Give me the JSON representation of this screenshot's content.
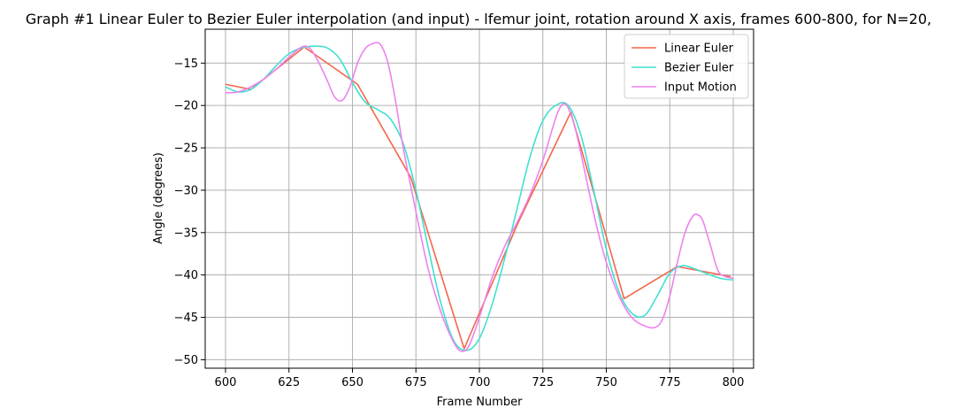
{
  "chart_data": {
    "type": "line",
    "title": "Graph #1 Linear Euler to Bezier Euler interpolation (and input) - lfemur joint, rotation around X axis, frames 600-800, for N=20,",
    "xlabel": "Frame Number",
    "ylabel": "Angle (degrees)",
    "xlim": [
      592,
      808
    ],
    "ylim": [
      -51,
      -11
    ],
    "x_ticks": [
      600,
      625,
      650,
      675,
      700,
      725,
      750,
      775,
      800
    ],
    "y_ticks": [
      -15,
      -20,
      -25,
      -30,
      -35,
      -40,
      -45,
      -50
    ],
    "grid": true,
    "legend_position": "top-right",
    "series": [
      {
        "name": "Linear Euler",
        "color": "#f4664a",
        "points": [
          [
            600,
            -17.5
          ],
          [
            610,
            -18.1
          ],
          [
            631,
            -13.1
          ],
          [
            652,
            -17.5
          ],
          [
            673,
            -28.5
          ],
          [
            694,
            -48.7
          ],
          [
            715,
            -34.0
          ],
          [
            736,
            -20.8
          ],
          [
            757,
            -42.8
          ],
          [
            778,
            -39.0
          ],
          [
            799,
            -40.2
          ]
        ]
      },
      {
        "name": "Bezier Euler",
        "color": "#40e0d0",
        "points": [
          [
            600,
            -17.8
          ],
          [
            605,
            -18.4
          ],
          [
            610,
            -18.1
          ],
          [
            615,
            -16.9
          ],
          [
            620,
            -15.3
          ],
          [
            625,
            -13.9
          ],
          [
            630,
            -13.2
          ],
          [
            635,
            -13.0
          ],
          [
            640,
            -13.2
          ],
          [
            645,
            -14.5
          ],
          [
            650,
            -17.3
          ],
          [
            655,
            -19.6
          ],
          [
            660,
            -20.5
          ],
          [
            665,
            -21.6
          ],
          [
            670,
            -24.5
          ],
          [
            675,
            -30.0
          ],
          [
            680,
            -37.0
          ],
          [
            685,
            -43.5
          ],
          [
            690,
            -47.8
          ],
          [
            695,
            -48.9
          ],
          [
            700,
            -47.5
          ],
          [
            705,
            -43.5
          ],
          [
            710,
            -38.0
          ],
          [
            715,
            -32.0
          ],
          [
            720,
            -26.0
          ],
          [
            725,
            -21.8
          ],
          [
            730,
            -20.0
          ],
          [
            735,
            -20.0
          ],
          [
            740,
            -23.5
          ],
          [
            745,
            -30.0
          ],
          [
            750,
            -37.0
          ],
          [
            755,
            -42.0
          ],
          [
            760,
            -44.5
          ],
          [
            765,
            -44.8
          ],
          [
            770,
            -42.5
          ],
          [
            775,
            -39.8
          ],
          [
            780,
            -38.9
          ],
          [
            785,
            -39.3
          ],
          [
            790,
            -39.9
          ],
          [
            795,
            -40.4
          ],
          [
            800,
            -40.6
          ]
        ]
      },
      {
        "name": "Input Motion",
        "color": "#ee82ee",
        "points": [
          [
            600,
            -18.5
          ],
          [
            605,
            -18.4
          ],
          [
            610,
            -17.8
          ],
          [
            615,
            -16.9
          ],
          [
            620,
            -15.7
          ],
          [
            625,
            -14.3
          ],
          [
            630,
            -13.1
          ],
          [
            633,
            -13.2
          ],
          [
            636,
            -14.5
          ],
          [
            640,
            -17.0
          ],
          [
            643,
            -19.0
          ],
          [
            646,
            -19.4
          ],
          [
            649,
            -17.8
          ],
          [
            652,
            -15.0
          ],
          [
            655,
            -13.3
          ],
          [
            658,
            -12.7
          ],
          [
            661,
            -12.8
          ],
          [
            664,
            -15.0
          ],
          [
            667,
            -19.5
          ],
          [
            670,
            -25.0
          ],
          [
            675,
            -32.5
          ],
          [
            680,
            -39.5
          ],
          [
            685,
            -44.5
          ],
          [
            690,
            -48.0
          ],
          [
            693,
            -49.0
          ],
          [
            696,
            -48.3
          ],
          [
            700,
            -45.0
          ],
          [
            705,
            -40.3
          ],
          [
            710,
            -36.6
          ],
          [
            715,
            -33.7
          ],
          [
            720,
            -30.5
          ],
          [
            725,
            -26.5
          ],
          [
            729,
            -22.5
          ],
          [
            731,
            -20.7
          ],
          [
            733,
            -19.8
          ],
          [
            735,
            -20.3
          ],
          [
            738,
            -23.0
          ],
          [
            742,
            -28.5
          ],
          [
            746,
            -34.0
          ],
          [
            750,
            -38.5
          ],
          [
            755,
            -42.5
          ],
          [
            760,
            -45.0
          ],
          [
            765,
            -46.0
          ],
          [
            769,
            -46.2
          ],
          [
            772,
            -45.3
          ],
          [
            775,
            -42.5
          ],
          [
            778,
            -38.5
          ],
          [
            781,
            -35.0
          ],
          [
            784,
            -33.1
          ],
          [
            786,
            -32.9
          ],
          [
            788,
            -33.6
          ],
          [
            791,
            -36.5
          ],
          [
            794,
            -39.5
          ],
          [
            797,
            -40.2
          ],
          [
            800,
            -40.4
          ]
        ]
      }
    ]
  }
}
